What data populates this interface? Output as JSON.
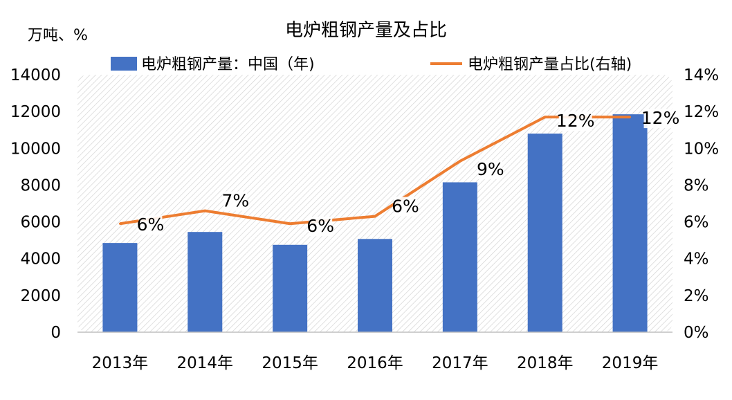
{
  "chart_data": {
    "type": "bar",
    "title": "电炉粗钢产量及占比",
    "left_axis_unit": "万吨、%",
    "categories": [
      "2013年",
      "2014年",
      "2015年",
      "2016年",
      "2017年",
      "2018年",
      "2019年"
    ],
    "series": [
      {
        "name": "电炉粗钢产量：中国（年)",
        "type": "bar",
        "axis": "left",
        "color": "#4472C4",
        "values": [
          4850,
          5450,
          4750,
          5070,
          8150,
          10800,
          11850
        ]
      },
      {
        "name": "电炉粗钢产量占比(右轴)",
        "type": "line",
        "axis": "right",
        "color": "#ED7D31",
        "values": [
          5.9,
          6.6,
          5.9,
          6.3,
          9.3,
          11.7,
          11.7
        ],
        "data_labels": [
          "6%",
          "7%",
          "6%",
          "6%",
          "9%",
          "12%",
          "12%"
        ]
      }
    ],
    "left_axis": {
      "ylim": [
        0,
        14000
      ],
      "ticks": [
        "0",
        "2000",
        "4000",
        "6000",
        "8000",
        "10000",
        "12000",
        "14000"
      ]
    },
    "right_axis": {
      "ylim": [
        0,
        14
      ],
      "ticks": [
        "0%",
        "2%",
        "4%",
        "6%",
        "8%",
        "10%",
        "12%",
        "14%"
      ]
    },
    "legend": "top",
    "grid": false,
    "plot_background": "diagonal-hatch"
  }
}
